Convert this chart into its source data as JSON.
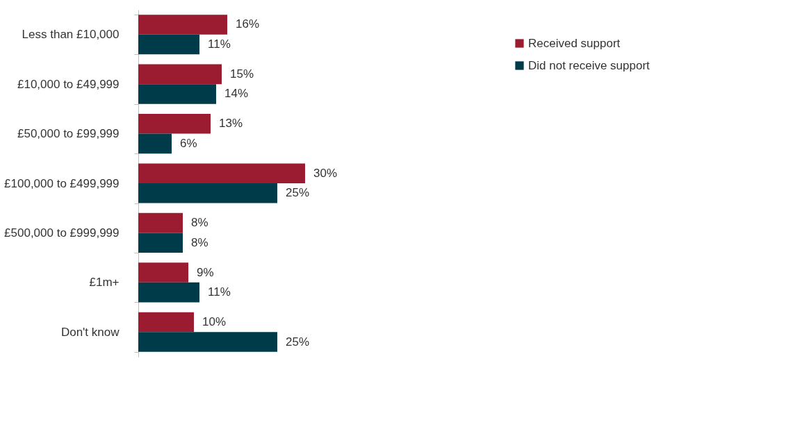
{
  "chart_data": {
    "type": "bar",
    "orientation": "horizontal",
    "legend": "right",
    "categories": [
      "Less than £10,000",
      "£10,000 to £49,999",
      "£50,000 to £99,999",
      "£100,000 to £499,999",
      "£500,000 to £999,999",
      "£1m+",
      "Don't know"
    ],
    "series": [
      {
        "name": "Received support",
        "color": "#9b1b30",
        "values": [
          16,
          15,
          13,
          30,
          8,
          9,
          10
        ],
        "value_labels": [
          "16%",
          "15%",
          "13%",
          "30%",
          "8%",
          "9%",
          "10%"
        ]
      },
      {
        "name": "Did not receive support",
        "color": "#003b4a",
        "values": [
          11,
          14,
          6,
          25,
          8,
          11,
          25
        ],
        "value_labels": [
          "11%",
          "14%",
          "6%",
          "25%",
          "8%",
          "11%",
          "25%"
        ]
      }
    ]
  }
}
